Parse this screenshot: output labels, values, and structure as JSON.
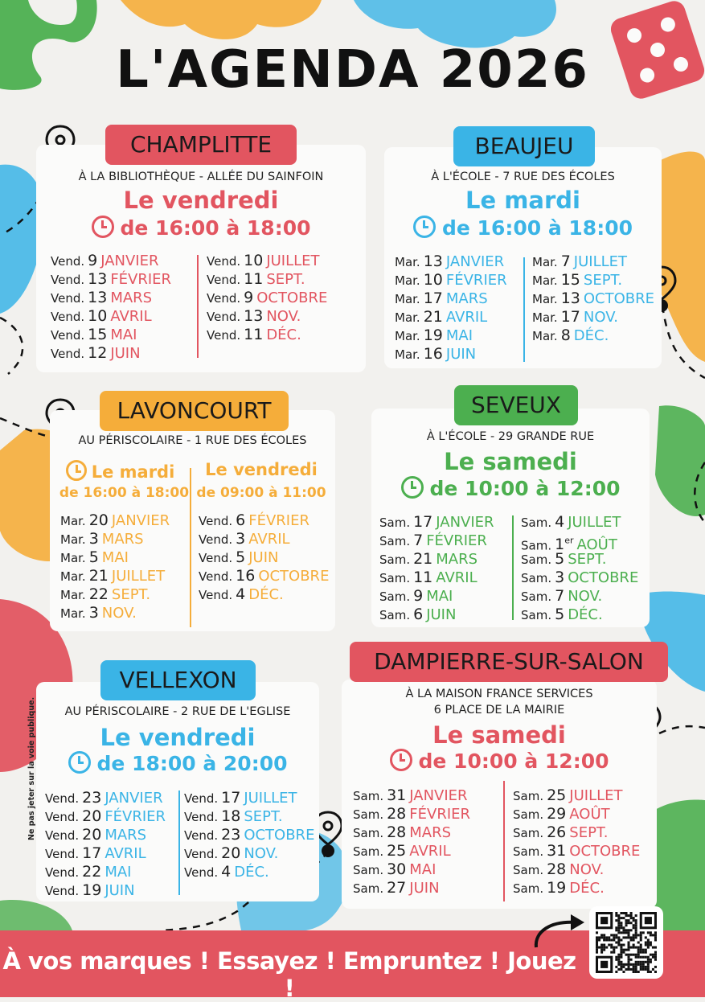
{
  "title": "L'AGENDA 2026",
  "colors": {
    "red": "#e25560",
    "blue": "#3ab4e6",
    "orange": "#f5ad3a",
    "green": "#4caf4f"
  },
  "champlitte": {
    "name": "CHAMPLITTE",
    "place": "À LA BIBLIOTHÈQUE - ALLÉE DU SAINFOIN",
    "day": "Le vendredi",
    "hours": "de 16:00 à 18:00",
    "left": [
      {
        "wd": "Vend.",
        "d": "9",
        "m": "JANVIER"
      },
      {
        "wd": "Vend.",
        "d": "13",
        "m": "FÉVRIER"
      },
      {
        "wd": "Vend.",
        "d": "13",
        "m": "MARS"
      },
      {
        "wd": "Vend.",
        "d": "10",
        "m": "AVRIL"
      },
      {
        "wd": "Vend.",
        "d": "15",
        "m": "MAI"
      },
      {
        "wd": "Vend.",
        "d": "12",
        "m": "JUIN"
      }
    ],
    "right": [
      {
        "wd": "Vend.",
        "d": "10",
        "m": "JUILLET"
      },
      {
        "wd": "Vend.",
        "d": "11",
        "m": "SEPT."
      },
      {
        "wd": "Vend.",
        "d": "9",
        "m": "OCTOBRE"
      },
      {
        "wd": "Vend.",
        "d": "13",
        "m": "NOV."
      },
      {
        "wd": "Vend.",
        "d": "11",
        "m": "DÉC."
      }
    ]
  },
  "beaujeu": {
    "name": "BEAUJEU",
    "place": "À L'ÉCOLE - 7 RUE DES ÉCOLES",
    "day": "Le mardi",
    "hours": "de 16:00 à 18:00",
    "left": [
      {
        "wd": "Mar.",
        "d": "13",
        "m": "JANVIER"
      },
      {
        "wd": "Mar.",
        "d": "10",
        "m": "FÉVRIER"
      },
      {
        "wd": "Mar.",
        "d": "17",
        "m": "MARS"
      },
      {
        "wd": "Mar.",
        "d": "21",
        "m": "AVRIL"
      },
      {
        "wd": "Mar.",
        "d": "19",
        "m": "MAI"
      },
      {
        "wd": "Mar.",
        "d": "16",
        "m": "JUIN"
      }
    ],
    "right": [
      {
        "wd": "Mar.",
        "d": "7",
        "m": "JUILLET"
      },
      {
        "wd": "Mar.",
        "d": "15",
        "m": "SEPT."
      },
      {
        "wd": "Mar.",
        "d": "13",
        "m": "OCTOBRE"
      },
      {
        "wd": "Mar.",
        "d": "17",
        "m": "NOV."
      },
      {
        "wd": "Mar.",
        "d": "8",
        "m": "DÉC."
      }
    ]
  },
  "lavoncourt": {
    "name": "LAVONCOURT",
    "place": "AU PÉRISCOLAIRE - 1 RUE DES ÉCOLES",
    "day1": "Le mardi",
    "hours1": "de 16:00 à 18:00",
    "day2": "Le vendredi",
    "hours2": "de 09:00 à 11:00",
    "left": [
      {
        "wd": "Mar.",
        "d": "20",
        "m": "JANVIER"
      },
      {
        "wd": "Mar.",
        "d": "3",
        "m": "MARS"
      },
      {
        "wd": "Mar.",
        "d": "5",
        "m": "MAI"
      },
      {
        "wd": "Mar.",
        "d": "21",
        "m": "JUILLET"
      },
      {
        "wd": "Mar.",
        "d": "22",
        "m": "SEPT."
      },
      {
        "wd": "Mar.",
        "d": "3",
        "m": "NOV."
      }
    ],
    "right": [
      {
        "wd": "Vend.",
        "d": "6",
        "m": "FÉVRIER"
      },
      {
        "wd": "Vend.",
        "d": "3",
        "m": "AVRIL"
      },
      {
        "wd": "Vend.",
        "d": "5",
        "m": "JUIN"
      },
      {
        "wd": "Vend.",
        "d": "16",
        "m": "OCTOBRE"
      },
      {
        "wd": "Vend.",
        "d": "4",
        "m": "DÉC."
      }
    ]
  },
  "seveux": {
    "name": "SEVEUX",
    "place": "À L'ÉCOLE - 29 GRANDE RUE",
    "day": "Le samedi",
    "hours": "de 10:00 à 12:00",
    "left": [
      {
        "wd": "Sam.",
        "d": "17",
        "m": "JANVIER"
      },
      {
        "wd": "Sam.",
        "d": "7",
        "m": "FÉVRIER"
      },
      {
        "wd": "Sam.",
        "d": "21",
        "m": "MARS"
      },
      {
        "wd": "Sam.",
        "d": "11",
        "m": "AVRIL"
      },
      {
        "wd": "Sam.",
        "d": "9",
        "m": "MAI"
      },
      {
        "wd": "Sam.",
        "d": "6",
        "m": "JUIN"
      }
    ],
    "right": [
      {
        "wd": "Sam.",
        "d": "4",
        "m": "JUILLET"
      },
      {
        "wd": "Sam.",
        "d": "1er",
        "m": "AOÛT"
      },
      {
        "wd": "Sam.",
        "d": "5",
        "m": "SEPT."
      },
      {
        "wd": "Sam.",
        "d": "3",
        "m": "OCTOBRE"
      },
      {
        "wd": "Sam.",
        "d": "7",
        "m": "NOV."
      },
      {
        "wd": "Sam.",
        "d": "5",
        "m": "DÉC."
      }
    ]
  },
  "vellexon": {
    "name": "VELLEXON",
    "place": "AU PÉRISCOLAIRE - 2 RUE DE L'EGLISE",
    "day": "Le vendredi",
    "hours": "de 18:00 à 20:00",
    "left": [
      {
        "wd": "Vend.",
        "d": "23",
        "m": "JANVIER"
      },
      {
        "wd": "Vend.",
        "d": "20",
        "m": "FÉVRIER"
      },
      {
        "wd": "Vend.",
        "d": "20",
        "m": "MARS"
      },
      {
        "wd": "Vend.",
        "d": "17",
        "m": "AVRIL"
      },
      {
        "wd": "Vend.",
        "d": "22",
        "m": "MAI"
      },
      {
        "wd": "Vend.",
        "d": "19",
        "m": "JUIN"
      }
    ],
    "right": [
      {
        "wd": "Vend.",
        "d": "17",
        "m": "JUILLET"
      },
      {
        "wd": "Vend.",
        "d": "18",
        "m": "SEPT."
      },
      {
        "wd": "Vend.",
        "d": "23",
        "m": "OCTOBRE"
      },
      {
        "wd": "Vend.",
        "d": "20",
        "m": "NOV."
      },
      {
        "wd": "Vend.",
        "d": "4",
        "m": "DÉC."
      }
    ]
  },
  "dampierre": {
    "name": "DAMPIERRE-SUR-SALON",
    "place1": "À LA MAISON FRANCE SERVICES",
    "place2": "6 PLACE DE LA MAIRIE",
    "day": "Le samedi",
    "hours": "de 10:00 à 12:00",
    "left": [
      {
        "wd": "Sam.",
        "d": "31",
        "m": "JANVIER"
      },
      {
        "wd": "Sam.",
        "d": "28",
        "m": "FÉVRIER"
      },
      {
        "wd": "Sam.",
        "d": "28",
        "m": "MARS"
      },
      {
        "wd": "Sam.",
        "d": "25",
        "m": "AVRIL"
      },
      {
        "wd": "Sam.",
        "d": "30",
        "m": "MAI"
      },
      {
        "wd": "Sam.",
        "d": "27",
        "m": "JUIN"
      }
    ],
    "right": [
      {
        "wd": "Sam.",
        "d": "25",
        "m": "JUILLET"
      },
      {
        "wd": "Sam.",
        "d": "29",
        "m": "AOÛT"
      },
      {
        "wd": "Sam.",
        "d": "26",
        "m": "SEPT."
      },
      {
        "wd": "Sam.",
        "d": "31",
        "m": "OCTOBRE"
      },
      {
        "wd": "Sam.",
        "d": "28",
        "m": "NOV."
      },
      {
        "wd": "Sam.",
        "d": "19",
        "m": "DÉC."
      }
    ]
  },
  "footer": {
    "slogan": "À vos marques ! Essayez ! Empruntez ! Jouez !"
  },
  "side_note": "Ne pas jeter sur la voie publique.",
  "icons": [
    "clock-icon",
    "map-pin-icon",
    "qr-code",
    "dice-icon",
    "arrow-icon"
  ]
}
